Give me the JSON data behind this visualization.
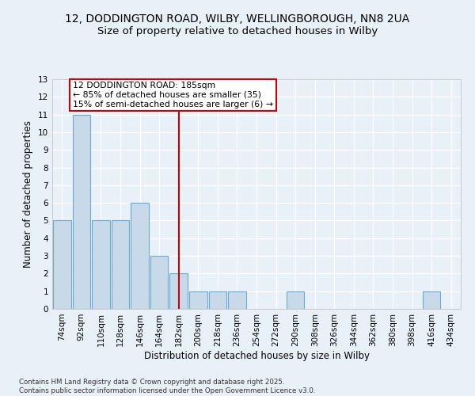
{
  "title_line1": "12, DODDINGTON ROAD, WILBY, WELLINGBOROUGH, NN8 2UA",
  "title_line2": "Size of property relative to detached houses in Wilby",
  "xlabel": "Distribution of detached houses by size in Wilby",
  "ylabel": "Number of detached properties",
  "categories": [
    "74sqm",
    "92sqm",
    "110sqm",
    "128sqm",
    "146sqm",
    "164sqm",
    "182sqm",
    "200sqm",
    "218sqm",
    "236sqm",
    "254sqm",
    "272sqm",
    "290sqm",
    "308sqm",
    "326sqm",
    "344sqm",
    "362sqm",
    "380sqm",
    "398sqm",
    "416sqm",
    "434sqm"
  ],
  "values": [
    5,
    11,
    5,
    5,
    6,
    3,
    2,
    1,
    1,
    1,
    0,
    0,
    1,
    0,
    0,
    0,
    0,
    0,
    0,
    1,
    0
  ],
  "bar_color": "#c8d9ea",
  "bar_edge_color": "#6aaad4",
  "highlight_index": 6,
  "highlight_line_color": "#cc0000",
  "annotation_text": "12 DODDINGTON ROAD: 185sqm\n← 85% of detached houses are smaller (35)\n15% of semi-detached houses are larger (6) →",
  "annotation_box_facecolor": "#ffffff",
  "annotation_box_edgecolor": "#cc0000",
  "ylim": [
    0,
    13
  ],
  "yticks": [
    0,
    1,
    2,
    3,
    4,
    5,
    6,
    7,
    8,
    9,
    10,
    11,
    12,
    13
  ],
  "footer_text": "Contains HM Land Registry data © Crown copyright and database right 2025.\nContains public sector information licensed under the Open Government Licence v3.0.",
  "bg_color": "#e8f0f8",
  "plot_bg_color": "#e8f0f8",
  "grid_color": "#ffffff",
  "title_fontsize": 10,
  "subtitle_fontsize": 9.5,
  "tick_fontsize": 7.5,
  "axis_label_fontsize": 8.5,
  "annotation_fontsize": 7.8,
  "footer_fontsize": 6.2
}
